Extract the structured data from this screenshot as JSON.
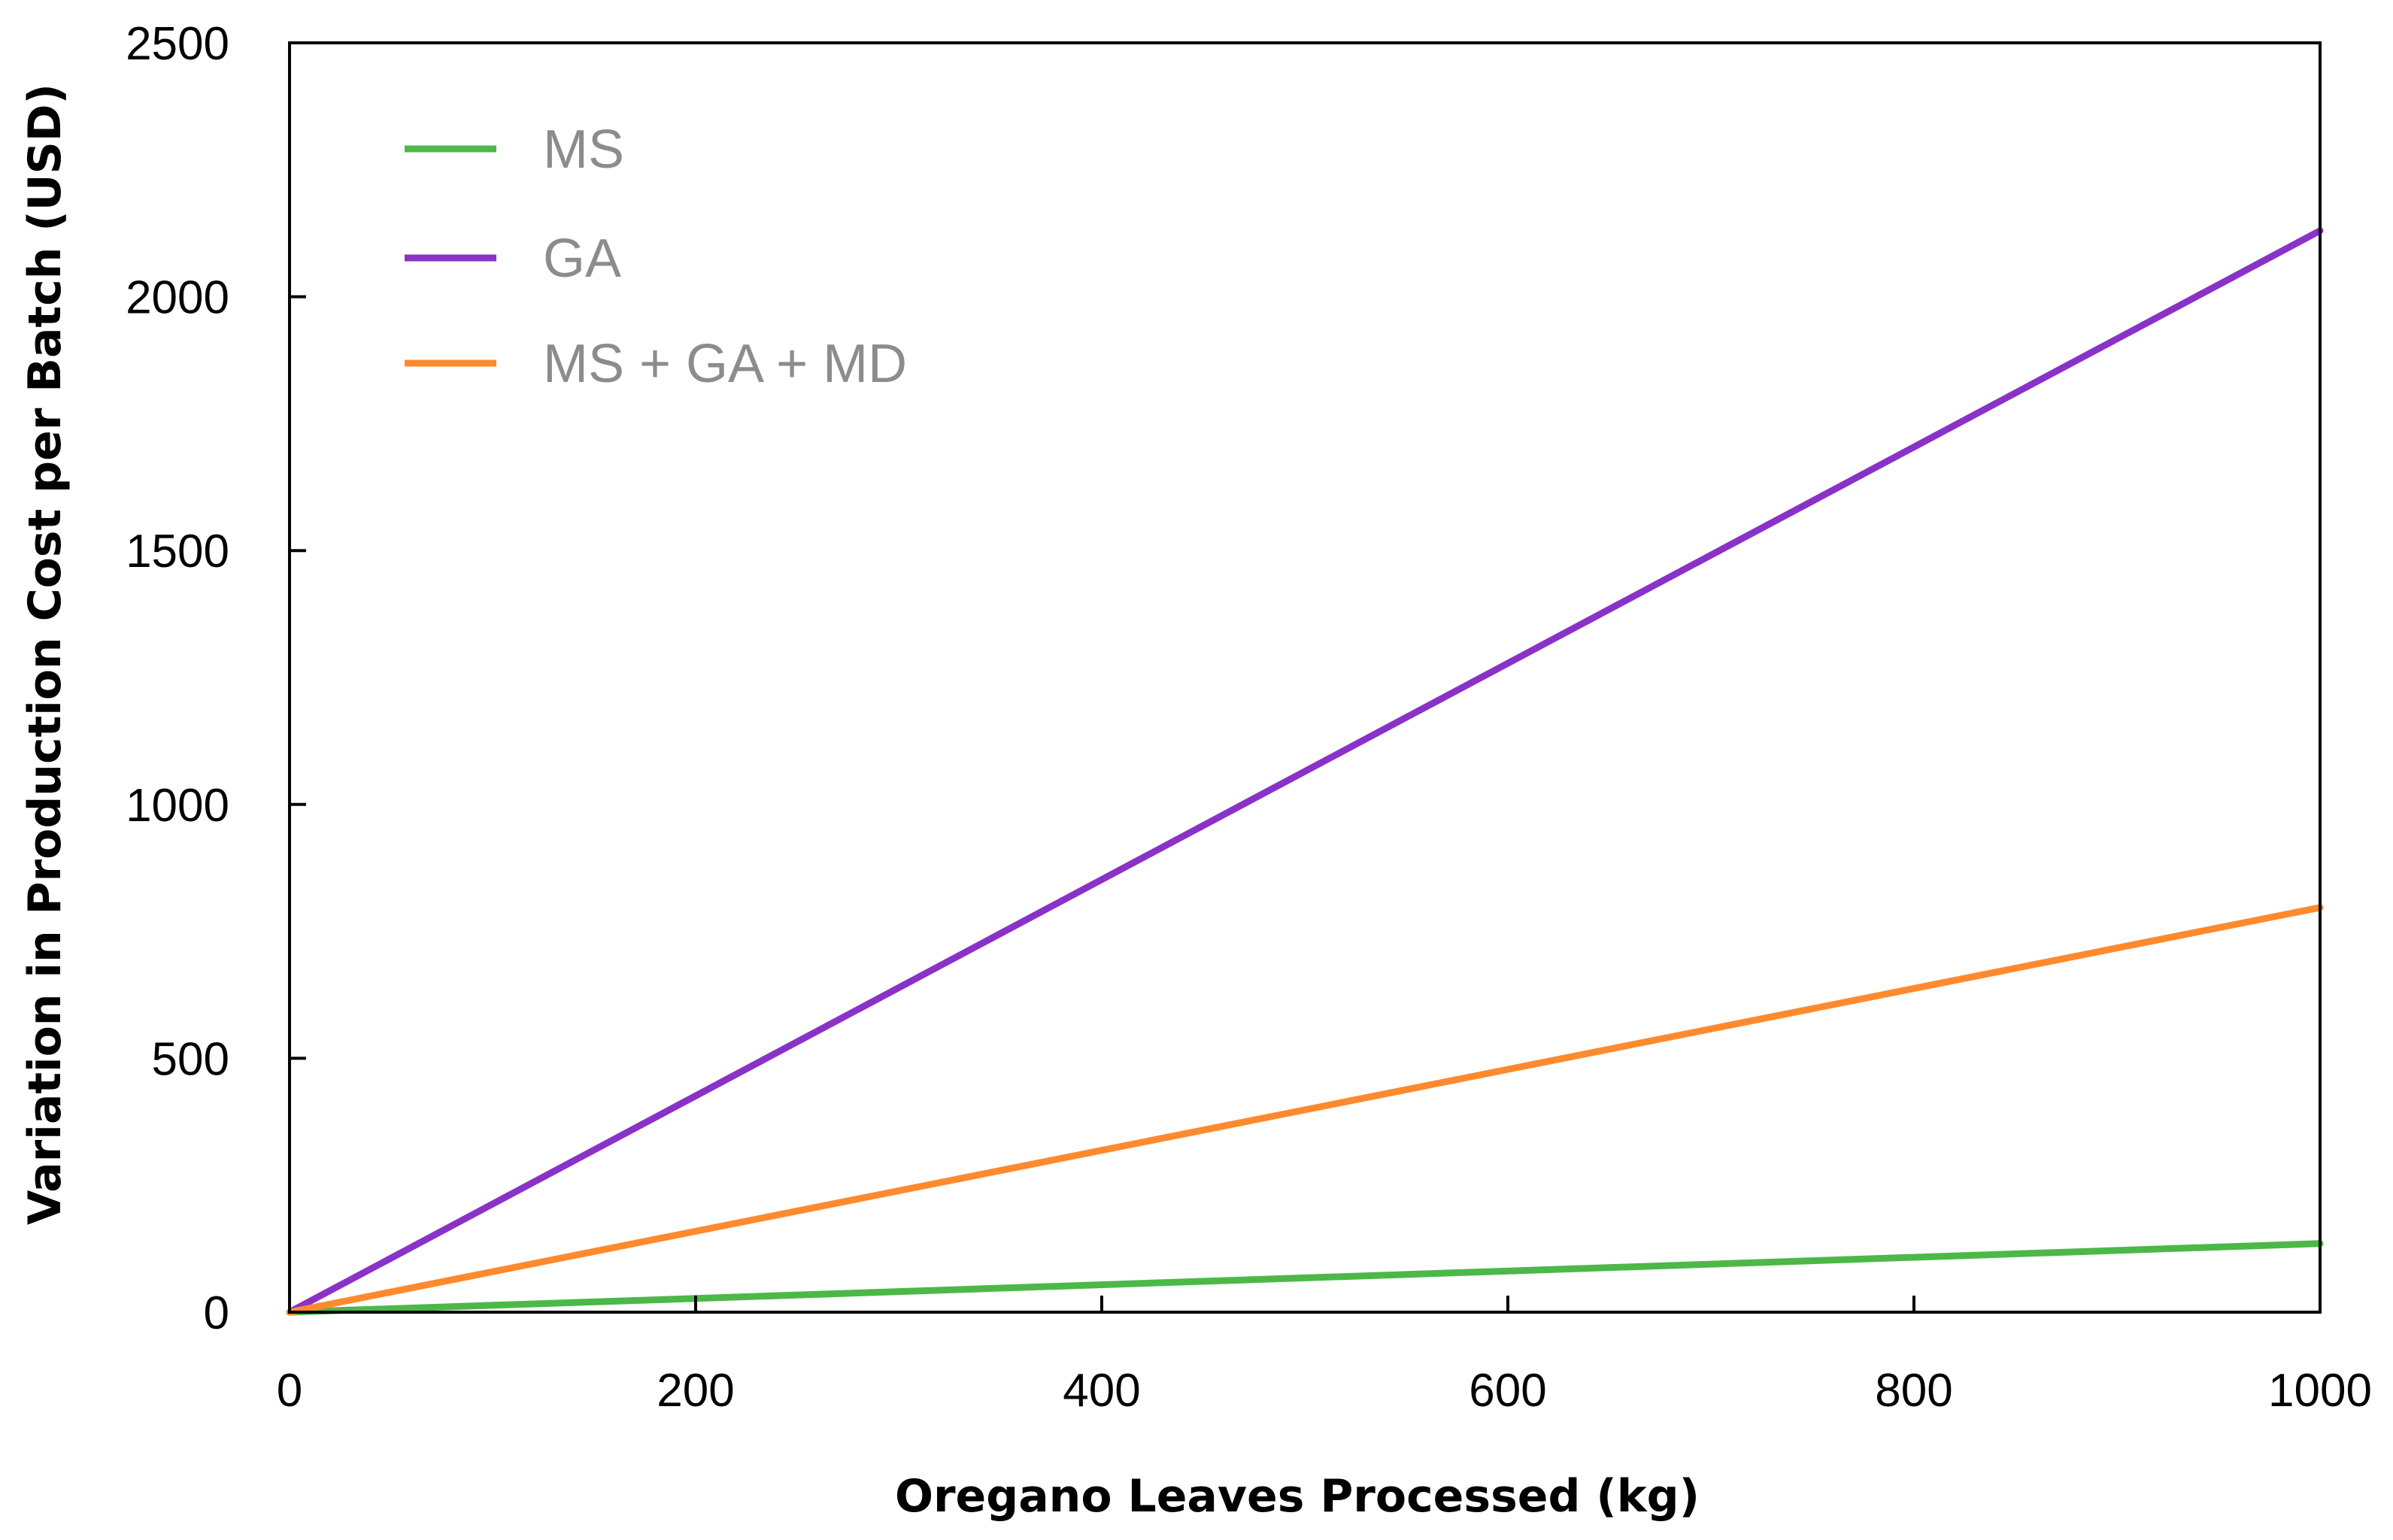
{
  "chart_data": {
    "type": "line",
    "title": "",
    "xlabel": "Oregano Leaves Processed (kg)",
    "ylabel": "Variation in Production Cost per Batch (USD)",
    "xlim": [
      0,
      1000
    ],
    "ylim": [
      0,
      2500
    ],
    "xticks": [
      0,
      200,
      400,
      600,
      800,
      1000
    ],
    "yticks": [
      0,
      500,
      1000,
      1500,
      2000,
      2500
    ],
    "grid": false,
    "legend_position": "top-left",
    "series": [
      {
        "name": "MS",
        "color": "#4cb848",
        "x": [
          0,
          1000
        ],
        "y": [
          0,
          135
        ]
      },
      {
        "name": "GA",
        "color": "#8a32c8",
        "x": [
          0,
          1000
        ],
        "y": [
          0,
          2130
        ]
      },
      {
        "name": "MS + GA + MD",
        "color": "#ff8a2e",
        "x": [
          0,
          1000
        ],
        "y": [
          0,
          797
        ]
      }
    ]
  }
}
